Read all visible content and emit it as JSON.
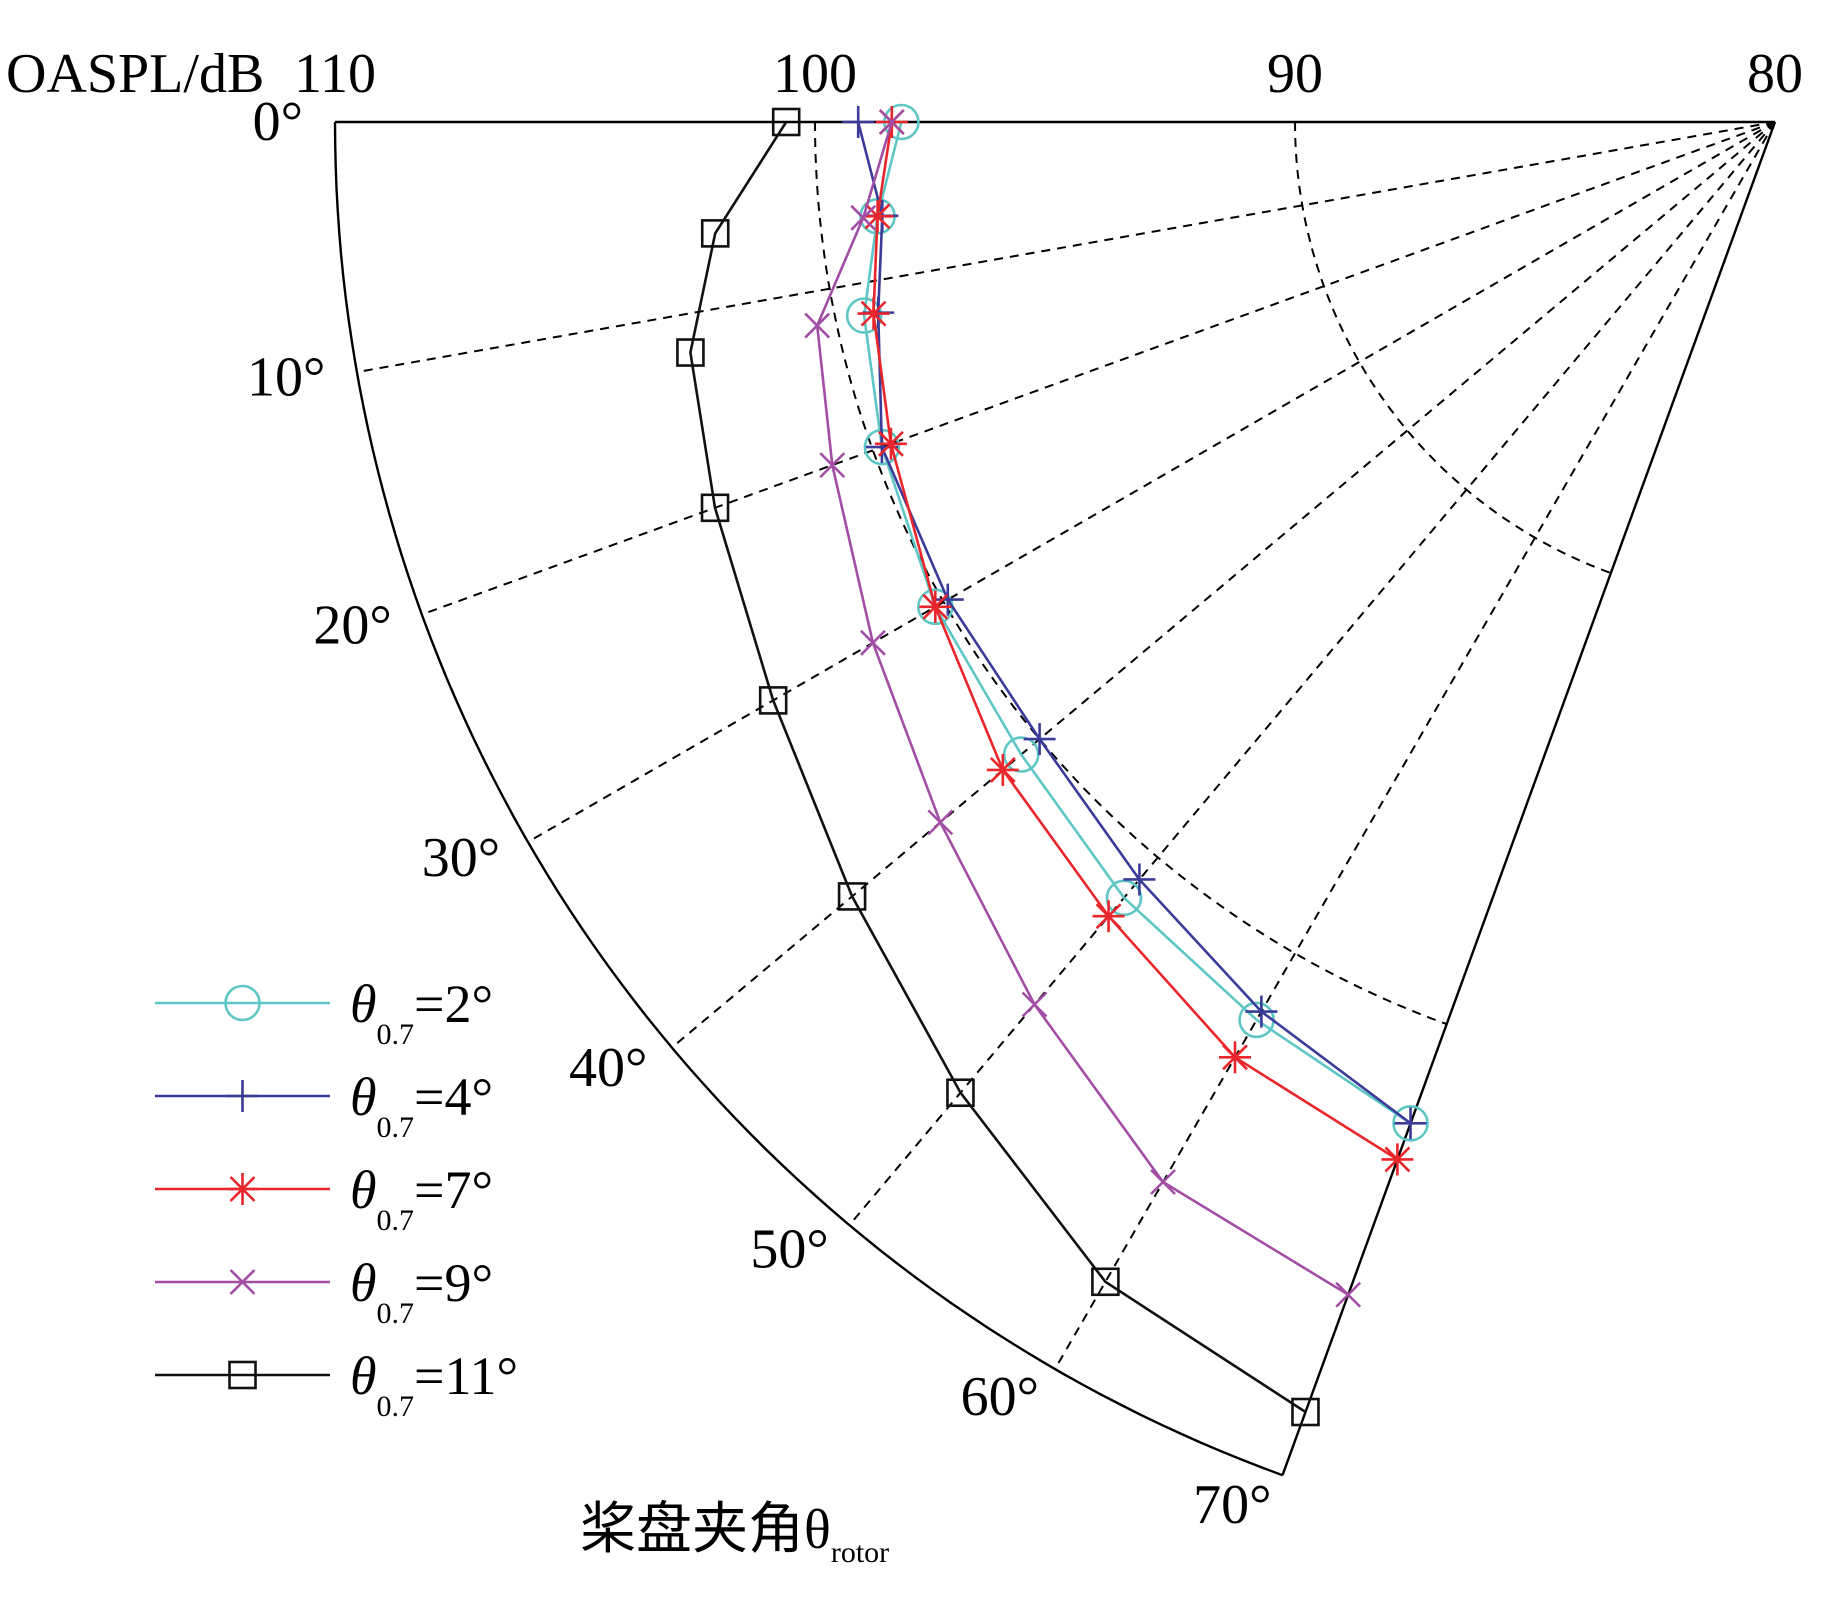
{
  "chart_data": {
    "type": "polar-line",
    "title": "",
    "r_axis": {
      "label": "OASPL/dB",
      "ticks": [
        "110",
        "100",
        "90",
        "80"
      ],
      "range": [
        110,
        80
      ]
    },
    "theta_axis": {
      "label": "桨盘夹角θ",
      "label_subscript": "rotor",
      "ticks": [
        "0°",
        "10°",
        "20°",
        "30°",
        "40°",
        "50°",
        "60°",
        "70°"
      ],
      "range": [
        0,
        70
      ]
    },
    "grid": true,
    "legend_position": "bottom-left",
    "series": [
      {
        "name": "θ0.7=2°",
        "name_prefix": "θ",
        "name_sub": "0.7",
        "name_suffix": "=2°",
        "color": "#5fc6c6",
        "marker": "circle",
        "theta": [
          0,
          6,
          12,
          20,
          30,
          40,
          50,
          60,
          70
        ],
        "values": [
          98.2,
          98.8,
          99.4,
          99.8,
          100.2,
          100.5,
          101.1,
          101.6,
          102.2
        ]
      },
      {
        "name": "θ0.7=4°",
        "name_prefix": "θ",
        "name_sub": "0.7",
        "name_suffix": "=4°",
        "color": "#3b3b9a",
        "marker": "plus",
        "theta": [
          0,
          6,
          12,
          20,
          30,
          40,
          50,
          60,
          70
        ],
        "values": [
          99.1,
          98.7,
          99.1,
          99.8,
          99.9,
          100.0,
          100.6,
          101.4,
          102.2
        ]
      },
      {
        "name": "θ0.7=7°",
        "name_prefix": "θ",
        "name_sub": "0.7",
        "name_suffix": "=7°",
        "color": "#e8262b",
        "marker": "asterisk",
        "theta": [
          0,
          6,
          12,
          20,
          30,
          40,
          50,
          60,
          70
        ],
        "values": [
          98.4,
          98.8,
          99.2,
          99.6,
          100.2,
          101.0,
          101.6,
          102.5,
          103.0
        ]
      },
      {
        "name": "θ0.7=9°",
        "name_prefix": "θ",
        "name_sub": "0.7",
        "name_suffix": "=9°",
        "color": "#a24ea4",
        "marker": "x",
        "theta": [
          0,
          6,
          12,
          20,
          30,
          40,
          50,
          60,
          70
        ],
        "values": [
          98.4,
          99.1,
          100.4,
          100.9,
          101.7,
          102.7,
          104.0,
          105.5,
          106.0
        ]
      },
      {
        "name": "θ0.7=11°",
        "name_prefix": "θ",
        "name_sub": "0.7",
        "name_suffix": "=11°",
        "color": "#111111",
        "marker": "square",
        "theta": [
          0,
          6,
          12,
          20,
          30,
          40,
          50,
          60,
          70
        ],
        "values": [
          100.6,
          102.2,
          103.1,
          103.5,
          104.1,
          105.1,
          106.4,
          107.9,
          108.6
        ]
      }
    ]
  }
}
